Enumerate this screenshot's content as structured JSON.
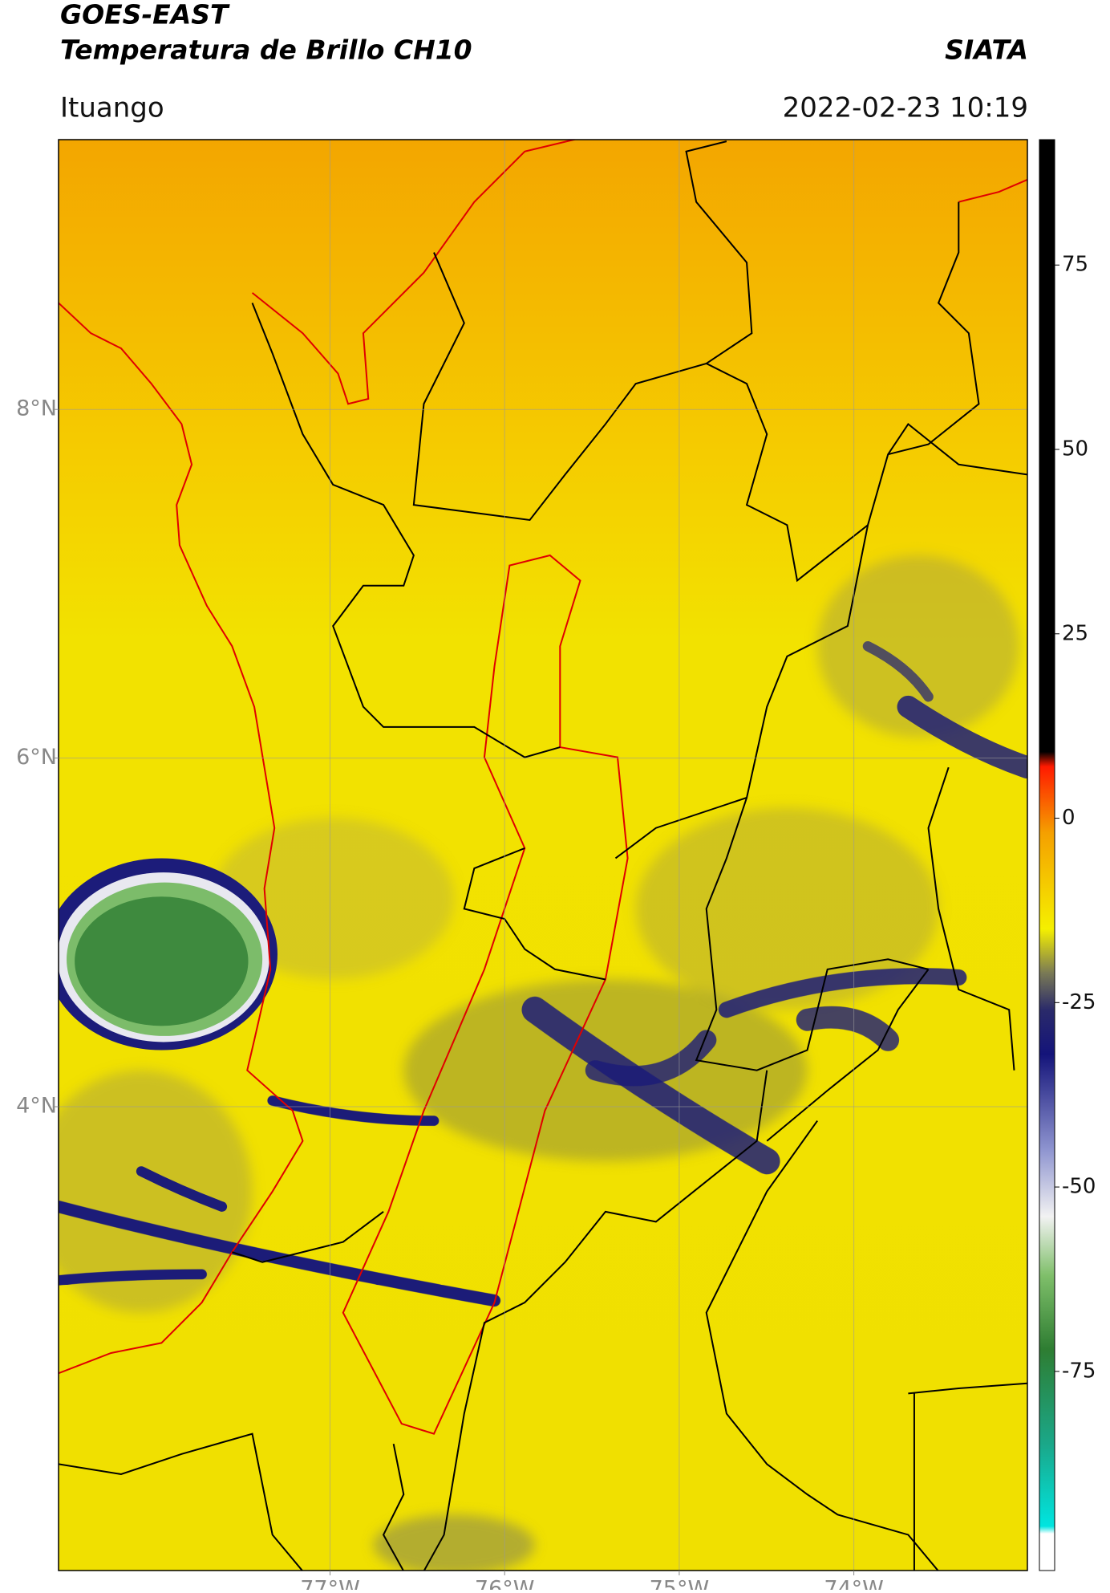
{
  "chart_data": {
    "type": "map",
    "title": "GOES-EAST",
    "subtitle": "Temperatura de Brillo CH10",
    "source": "SIATA",
    "location": "Ituango",
    "timestamp": "2022-02-23 10:19",
    "xlim": [
      -78.555,
      -73.006
    ],
    "ylim": [
      1.339,
      9.548
    ],
    "xticks": [
      {
        "value": -77,
        "label": "77°W"
      },
      {
        "value": -76,
        "label": "76°W"
      },
      {
        "value": -75,
        "label": "75°W"
      },
      {
        "value": -74,
        "label": "74°W"
      }
    ],
    "yticks": [
      {
        "value": 4,
        "label": "4°N"
      },
      {
        "value": 6,
        "label": "6°N"
      },
      {
        "value": 8,
        "label": "8°N"
      }
    ],
    "grid": true,
    "colorbar": {
      "lim": [
        -102,
        92
      ],
      "ticks": [
        -75,
        -50,
        -25,
        0,
        25,
        50,
        75
      ],
      "stops": [
        {
          "value": -102,
          "color": "#ffffff"
        },
        {
          "value": -97,
          "color": "#ffffff"
        },
        {
          "value": -96,
          "color": "#00e5e0"
        },
        {
          "value": -85,
          "color": "#1aa88a"
        },
        {
          "value": -72,
          "color": "#2e7d32"
        },
        {
          "value": -62,
          "color": "#7fbf6a"
        },
        {
          "value": -54,
          "color": "#f2f2f2"
        },
        {
          "value": -45,
          "color": "#8f95d0"
        },
        {
          "value": -32,
          "color": "#14147a"
        },
        {
          "value": -26,
          "color": "#2a2a6a"
        },
        {
          "value": -21,
          "color": "#7a7a55"
        },
        {
          "value": -15,
          "color": "#f5f000"
        },
        {
          "value": -2,
          "color": "#f5a000"
        },
        {
          "value": 7,
          "color": "#ff1a00"
        },
        {
          "value": 9,
          "color": "#000000"
        },
        {
          "value": 92,
          "color": "#000000"
        }
      ]
    }
  }
}
